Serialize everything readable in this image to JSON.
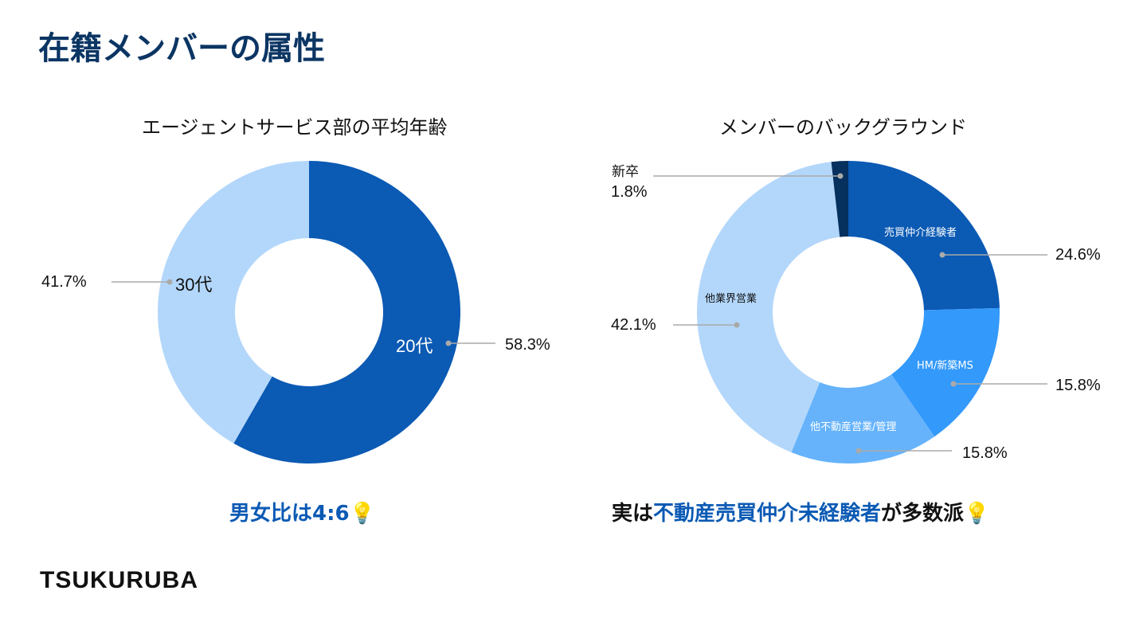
{
  "title": "在籍メンバーの属性",
  "logo": "TSUKURUBA",
  "chart_data": [
    {
      "type": "pie",
      "title": "エージェントサービス部の平均年齢",
      "donut": true,
      "slices": [
        {
          "label": "20代",
          "value": 58.3,
          "display": "58.3%",
          "color": "#0b5ab4"
        },
        {
          "label": "30代",
          "value": 41.7,
          "display": "41.7%",
          "color": "#b3d7fb"
        }
      ]
    },
    {
      "type": "pie",
      "title": "メンバーのバックグラウンド",
      "donut": true,
      "slices": [
        {
          "label": "売買仲介経験者",
          "value": 24.6,
          "display": "24.6%",
          "color": "#0b5ab4"
        },
        {
          "label": "HM/新築MS",
          "value": 15.8,
          "display": "15.8%",
          "color": "#3399fb"
        },
        {
          "label": "他不動産営業/管理",
          "value": 15.8,
          "display": "15.8%",
          "color": "#66b3fb"
        },
        {
          "label": "他業界営業",
          "value": 42.1,
          "display": "42.1%",
          "color": "#b3d7fb"
        },
        {
          "label": "新卒",
          "value": 1.8,
          "display": "1.8%",
          "color": "#06305e"
        }
      ]
    }
  ],
  "notes": {
    "left": "男女比は4:6💡",
    "right_prefix": "実は",
    "right_highlight": "不動産売買仲介未経験者",
    "right_suffix": "が多数派💡"
  }
}
